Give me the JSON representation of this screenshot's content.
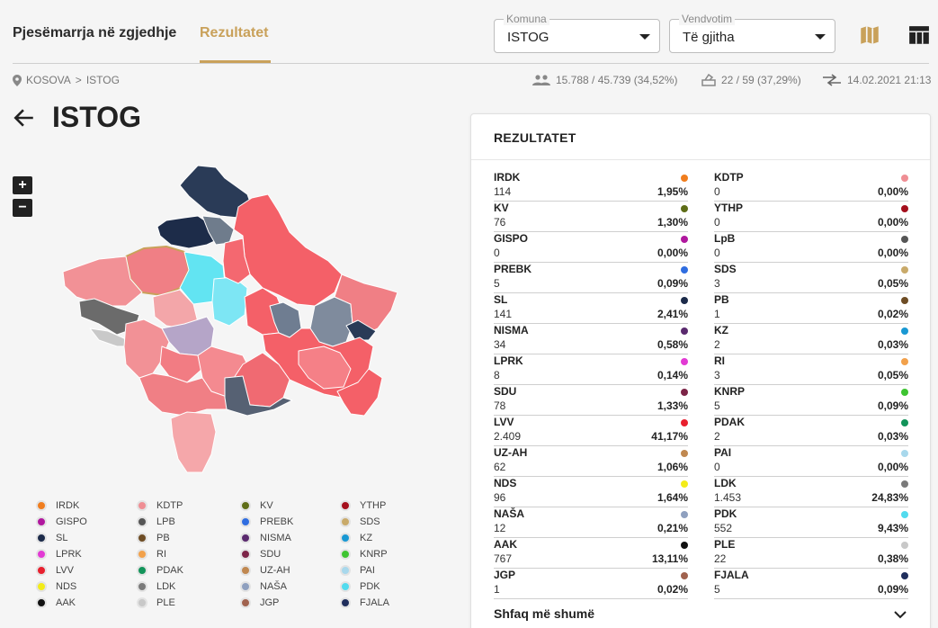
{
  "tabs": [
    {
      "label": "Pjesëmarrja në zgjedhje"
    },
    {
      "label": "Rezultatet"
    }
  ],
  "filters": {
    "komuna": {
      "label": "Komuna",
      "value": "ISTOG"
    },
    "vendvotim": {
      "label": "Vendvotim",
      "value": "Të gjitha"
    }
  },
  "breadcrumb": {
    "root": "KOSOVA",
    "sep": ">",
    "current": "ISTOG"
  },
  "stats": {
    "turnout": "15.788 / 45.739 (34,52%)",
    "stations": "22 / 59 (37,29%)",
    "updated": "14.02.2021 21:13"
  },
  "page_title": "ISTOG",
  "zoom": {
    "in": "+",
    "out": "−"
  },
  "results_panel": {
    "title": "REZULTATET",
    "show_more": "Shfaq më shumë",
    "left": [
      {
        "name": "IRDK",
        "votes": "114",
        "pct": "1,95%",
        "color": "#f07d1e"
      },
      {
        "name": "KV",
        "votes": "76",
        "pct": "1,30%",
        "color": "#5e6d17"
      },
      {
        "name": "GISPO",
        "votes": "0",
        "pct": "0,00%",
        "color": "#b0189e"
      },
      {
        "name": "PREBK",
        "votes": "5",
        "pct": "0,09%",
        "color": "#2f6de0"
      },
      {
        "name": "SL",
        "votes": "141",
        "pct": "2,41%",
        "color": "#1c2b4a"
      },
      {
        "name": "NISMA",
        "votes": "34",
        "pct": "0,58%",
        "color": "#5a2a6e"
      },
      {
        "name": "LPRK",
        "votes": "8",
        "pct": "0,14%",
        "color": "#e23ad4"
      },
      {
        "name": "SDU",
        "votes": "78",
        "pct": "1,33%",
        "color": "#7c2447"
      },
      {
        "name": "LVV",
        "votes": "2.409",
        "pct": "41,17%",
        "color": "#e8202e"
      },
      {
        "name": "UZ-AH",
        "votes": "62",
        "pct": "1,06%",
        "color": "#c08850"
      },
      {
        "name": "NDS",
        "votes": "96",
        "pct": "1,64%",
        "color": "#f3ec19"
      },
      {
        "name": "NAŠA",
        "votes": "12",
        "pct": "0,21%",
        "color": "#8fa0bf"
      },
      {
        "name": "AAK",
        "votes": "767",
        "pct": "13,11%",
        "color": "#111111"
      },
      {
        "name": "JGP",
        "votes": "1",
        "pct": "0,02%",
        "color": "#a0624e"
      }
    ],
    "right": [
      {
        "name": "KDTP",
        "votes": "0",
        "pct": "0,00%",
        "color": "#ef8e94"
      },
      {
        "name": "YTHP",
        "votes": "0",
        "pct": "0,00%",
        "color": "#a40f1c"
      },
      {
        "name": "LpB",
        "votes": "0",
        "pct": "0,00%",
        "color": "#555555"
      },
      {
        "name": "SDS",
        "votes": "3",
        "pct": "0,05%",
        "color": "#c9aa6a"
      },
      {
        "name": "PB",
        "votes": "1",
        "pct": "0,02%",
        "color": "#6e4d25"
      },
      {
        "name": "KZ",
        "votes": "2",
        "pct": "0,03%",
        "color": "#1998d3"
      },
      {
        "name": "RI",
        "votes": "3",
        "pct": "0,05%",
        "color": "#f2a14b"
      },
      {
        "name": "KNRP",
        "votes": "5",
        "pct": "0,09%",
        "color": "#3ec431"
      },
      {
        "name": "PDAK",
        "votes": "2",
        "pct": "0,03%",
        "color": "#13945a"
      },
      {
        "name": "PAI",
        "votes": "0",
        "pct": "0,00%",
        "color": "#a8d8ec"
      },
      {
        "name": "LDK",
        "votes": "1.453",
        "pct": "24,83%",
        "color": "#7a7a7a"
      },
      {
        "name": "PDK",
        "votes": "552",
        "pct": "9,43%",
        "color": "#52dbee"
      },
      {
        "name": "PLE",
        "votes": "22",
        "pct": "0,38%",
        "color": "#c8c8c8"
      },
      {
        "name": "FJALA",
        "votes": "5",
        "pct": "0,09%",
        "color": "#1f2e5c"
      }
    ]
  },
  "legend": [
    {
      "name": "IRDK",
      "color": "#f07d1e"
    },
    {
      "name": "KDTP",
      "color": "#ef8e94"
    },
    {
      "name": "KV",
      "color": "#5e6d17"
    },
    {
      "name": "YTHP",
      "color": "#a40f1c"
    },
    {
      "name": "GISPO",
      "color": "#b0189e"
    },
    {
      "name": "LPB",
      "color": "#555555"
    },
    {
      "name": "PREBK",
      "color": "#2f6de0"
    },
    {
      "name": "SDS",
      "color": "#c9aa6a"
    },
    {
      "name": "SL",
      "color": "#1c2b4a"
    },
    {
      "name": "PB",
      "color": "#6e4d25"
    },
    {
      "name": "NISMA",
      "color": "#5a2a6e"
    },
    {
      "name": "KZ",
      "color": "#1998d3"
    },
    {
      "name": "LPRK",
      "color": "#e23ad4"
    },
    {
      "name": "RI",
      "color": "#f2a14b"
    },
    {
      "name": "SDU",
      "color": "#7c2447"
    },
    {
      "name": "KNRP",
      "color": "#3ec431"
    },
    {
      "name": "LVV",
      "color": "#e8202e"
    },
    {
      "name": "PDAK",
      "color": "#13945a"
    },
    {
      "name": "UZ-AH",
      "color": "#c08850"
    },
    {
      "name": "PAI",
      "color": "#a8d8ec"
    },
    {
      "name": "NDS",
      "color": "#f3ec19"
    },
    {
      "name": "LDK",
      "color": "#7a7a7a"
    },
    {
      "name": "NAŠA",
      "color": "#8fa0bf"
    },
    {
      "name": "PDK",
      "color": "#52dbee"
    },
    {
      "name": "AAK",
      "color": "#111111"
    },
    {
      "name": "PLE",
      "color": "#c8c8c8"
    },
    {
      "name": "JGP",
      "color": "#a0624e"
    },
    {
      "name": "FJALA",
      "color": "#1f2e5c"
    }
  ],
  "icons": {
    "map": "map-icon",
    "table": "table-icon",
    "location": "location-pin-icon",
    "people": "people-icon",
    "ballot": "ballot-box-icon",
    "sync": "sync-arrows-icon",
    "back": "arrow-back-icon",
    "expand": "chevron-down-icon"
  },
  "colors": {
    "accent": "#c9a15a"
  }
}
